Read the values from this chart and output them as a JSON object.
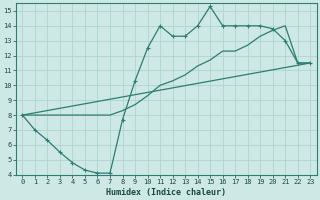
{
  "xlabel": "Humidex (Indice chaleur)",
  "bg_color": "#cde8e5",
  "grid_color": "#afd4d0",
  "line_color": "#2d7d74",
  "xlim": [
    -0.5,
    23.5
  ],
  "ylim": [
    4,
    15.5
  ],
  "xticks": [
    0,
    1,
    2,
    3,
    4,
    5,
    6,
    7,
    8,
    9,
    10,
    11,
    12,
    13,
    14,
    15,
    16,
    17,
    18,
    19,
    20,
    21,
    22,
    23
  ],
  "yticks": [
    4,
    5,
    6,
    7,
    8,
    9,
    10,
    11,
    12,
    13,
    14,
    15
  ],
  "line1_x": [
    0,
    1,
    2,
    3,
    4,
    5,
    6,
    7,
    8,
    9,
    10,
    11,
    12,
    13,
    14,
    15,
    16,
    17,
    18,
    19,
    20,
    21,
    22,
    23
  ],
  "line1_y": [
    8.0,
    7.0,
    6.3,
    5.5,
    4.8,
    4.3,
    4.1,
    4.1,
    7.7,
    10.3,
    12.5,
    14.0,
    13.3,
    13.3,
    14.0,
    15.3,
    14.0,
    14.0,
    14.0,
    14.0,
    13.8,
    13.0,
    11.5,
    11.5
  ],
  "line2_x": [
    0,
    1,
    2,
    3,
    4,
    5,
    6,
    7,
    8,
    9,
    10,
    11,
    12,
    13,
    14,
    15,
    16,
    17,
    18,
    19,
    20,
    21,
    22,
    23
  ],
  "line2_y": [
    8.0,
    8.0,
    8.0,
    8.0,
    8.0,
    8.0,
    8.0,
    8.0,
    8.3,
    8.7,
    9.3,
    10.0,
    10.3,
    10.7,
    11.3,
    11.7,
    12.3,
    12.3,
    12.7,
    13.3,
    13.7,
    14.0,
    11.5,
    11.5
  ],
  "line3_x": [
    0,
    23
  ],
  "line3_y": [
    8.0,
    11.5
  ]
}
